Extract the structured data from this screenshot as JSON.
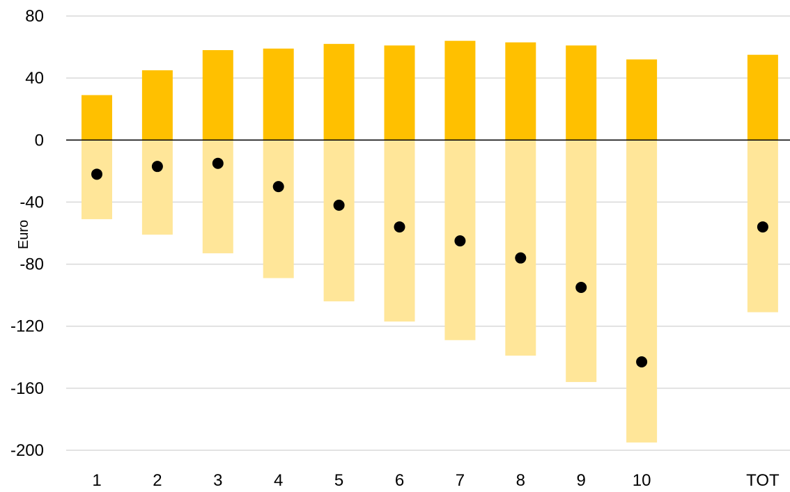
{
  "chart_data": {
    "type": "bar",
    "title": "",
    "xlabel": "",
    "ylabel": "Euro",
    "ylim": [
      -200,
      80
    ],
    "yticks": [
      80,
      40,
      0,
      -40,
      -80,
      -120,
      -160,
      -200
    ],
    "grid": true,
    "legend": "none",
    "categories": [
      "1",
      "2",
      "3",
      "4",
      "5",
      "6",
      "7",
      "8",
      "9",
      "10",
      "TOT"
    ],
    "category_positions": [
      1,
      2,
      3,
      4,
      5,
      6,
      7,
      8,
      9,
      10,
      12
    ],
    "series": [
      {
        "type": "bar",
        "color": "#FFC000",
        "values": [
          29,
          45,
          58,
          59,
          62,
          61,
          64,
          63,
          61,
          52,
          55
        ]
      },
      {
        "type": "bar",
        "color": "#FFE699",
        "values": [
          -51,
          -61,
          -73,
          -89,
          -104,
          -117,
          -129,
          -139,
          -156,
          -195,
          -111
        ]
      },
      {
        "type": "scatter",
        "color": "#000000",
        "values": [
          -22,
          -17,
          -15,
          -30,
          -42,
          -56,
          -65,
          -76,
          -95,
          -143,
          -56
        ]
      }
    ]
  }
}
